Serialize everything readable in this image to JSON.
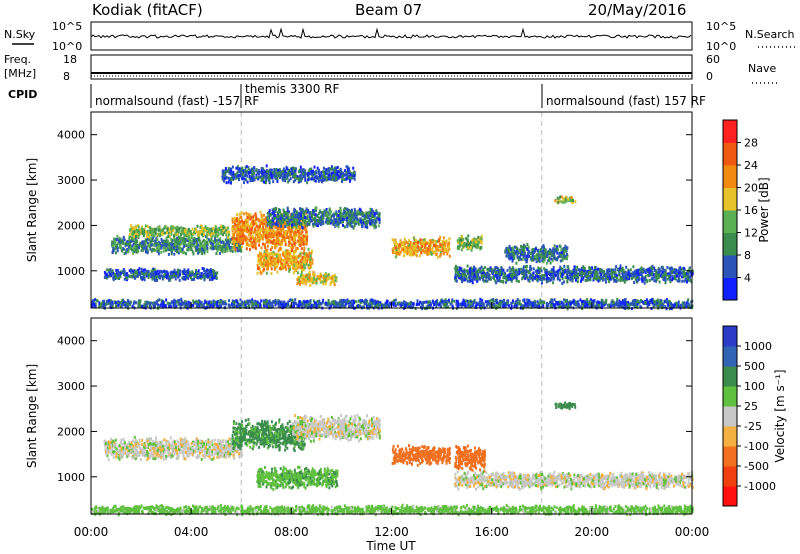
{
  "header": {
    "station": "Kodiak (fitACF)",
    "beam": "Beam 07",
    "date": "20/May/2016"
  },
  "top_panels": {
    "nsky_label": "N.Sky",
    "nsearch_label": "N.Search",
    "nsky_ticks": [
      "10^5",
      "10^0"
    ],
    "freq_label_1": "Freq.",
    "freq_label_2": "[MHz]",
    "freq_ticks": [
      "18",
      "8"
    ],
    "nave_label": "Nave",
    "nave_ticks": [
      "60",
      "0"
    ],
    "cpid_label": "CPID",
    "cpid_segments": [
      {
        "label": "normalsound (fast) -157 RF",
        "start_hour": 0,
        "end_hour": 6
      },
      {
        "label": "themis 3300 RF",
        "start_hour": 6,
        "end_hour": 18
      },
      {
        "label": "normalsound (fast) 157 RF",
        "start_hour": 18,
        "end_hour": 24
      }
    ]
  },
  "chart_data": [
    {
      "type": "heatmap",
      "title": "Power",
      "ylabel": "Slant Range [km]",
      "xlabel": "Time UT",
      "xlim": [
        0,
        24
      ],
      "ylim": [
        180,
        4500
      ],
      "y_ticks": [
        "1000",
        "2000",
        "3000",
        "4000"
      ],
      "x_ticks": [
        "00:00",
        "04:00",
        "08:00",
        "12:00",
        "16:00",
        "20:00",
        "00:00"
      ],
      "colorbar_label": "Power [dB]",
      "colorbar_ticks": [
        "4",
        "8",
        "12",
        "16",
        "20",
        "24",
        "28"
      ],
      "colorbar_colors": [
        "#1020ff",
        "#2a54b8",
        "#3a8c4c",
        "#5cb054",
        "#e8c22a",
        "#f08a10",
        "#f05a10",
        "#ff2020"
      ],
      "series": [
        {
          "x_start": 0.8,
          "x_end": 6.0,
          "y_center": 1600,
          "y_half": 220,
          "level": 10
        },
        {
          "x_start": 1.5,
          "x_end": 5.5,
          "y_center": 1900,
          "y_half": 150,
          "level": 14
        },
        {
          "x_start": 5.6,
          "x_end": 8.6,
          "y_center": 1900,
          "y_half": 450,
          "level": 22
        },
        {
          "x_start": 6.6,
          "x_end": 8.8,
          "y_center": 1250,
          "y_half": 300,
          "level": 20
        },
        {
          "x_start": 8.2,
          "x_end": 9.8,
          "y_center": 850,
          "y_half": 150,
          "level": 18
        },
        {
          "x_start": 7.0,
          "x_end": 11.5,
          "y_center": 2200,
          "y_half": 250,
          "level": 8
        },
        {
          "x_start": 5.2,
          "x_end": 10.5,
          "y_center": 3150,
          "y_half": 200,
          "level": 6
        },
        {
          "x_start": 12.0,
          "x_end": 14.3,
          "y_center": 1550,
          "y_half": 230,
          "level": 20
        },
        {
          "x_start": 14.6,
          "x_end": 15.6,
          "y_center": 1650,
          "y_half": 200,
          "level": 14
        },
        {
          "x_start": 0.5,
          "x_end": 5.0,
          "y_center": 950,
          "y_half": 150,
          "level": 6
        },
        {
          "x_start": 14.5,
          "x_end": 24.0,
          "y_center": 950,
          "y_half": 200,
          "level": 7
        },
        {
          "x_start": 16.5,
          "x_end": 19.0,
          "y_center": 1400,
          "y_half": 220,
          "level": 8
        },
        {
          "x_start": 18.5,
          "x_end": 19.3,
          "y_center": 2600,
          "y_half": 80,
          "level": 16
        },
        {
          "x_start": 0.0,
          "x_end": 24.0,
          "y_center": 300,
          "y_half": 110,
          "level": 6
        }
      ]
    },
    {
      "type": "heatmap",
      "title": "Velocity",
      "ylabel": "Slant Range [km]",
      "xlabel": "Time UT",
      "xlim": [
        0,
        24
      ],
      "ylim": [
        180,
        4500
      ],
      "y_ticks": [
        "1000",
        "2000",
        "3000",
        "4000"
      ],
      "x_ticks": [
        "00:00",
        "04:00",
        "08:00",
        "12:00",
        "16:00",
        "20:00",
        "00:00"
      ],
      "colorbar_label": "Velocity [m s⁻¹]",
      "colorbar_ticks": [
        "1000",
        "500",
        "100",
        "25",
        "-25",
        "-100",
        "-500",
        "-1000"
      ],
      "colorbar_colors": [
        "#2a3cc8",
        "#3064b4",
        "#3a8c4c",
        "#60c040",
        "#c8c8c8",
        "#f4b040",
        "#f07020",
        "#f04010",
        "#ff1010"
      ],
      "series": [
        {
          "x_start": 0.5,
          "x_end": 6.0,
          "y_center": 1650,
          "y_half": 260,
          "velocity": 0
        },
        {
          "x_start": 5.6,
          "x_end": 8.5,
          "y_center": 1950,
          "y_half": 350,
          "velocity": 120
        },
        {
          "x_start": 6.6,
          "x_end": 9.8,
          "y_center": 1000,
          "y_half": 260,
          "velocity": 80
        },
        {
          "x_start": 8.0,
          "x_end": 11.5,
          "y_center": 2100,
          "y_half": 300,
          "velocity": 0
        },
        {
          "x_start": 12.0,
          "x_end": 14.3,
          "y_center": 1500,
          "y_half": 230,
          "velocity": -300
        },
        {
          "x_start": 14.5,
          "x_end": 15.7,
          "y_center": 1450,
          "y_half": 300,
          "velocity": -300
        },
        {
          "x_start": 14.5,
          "x_end": 24.0,
          "y_center": 950,
          "y_half": 200,
          "velocity": 0
        },
        {
          "x_start": 18.5,
          "x_end": 19.3,
          "y_center": 2600,
          "y_half": 80,
          "velocity": 150
        },
        {
          "x_start": 0.0,
          "x_end": 24.0,
          "y_center": 300,
          "y_half": 110,
          "velocity": 60
        }
      ]
    }
  ]
}
